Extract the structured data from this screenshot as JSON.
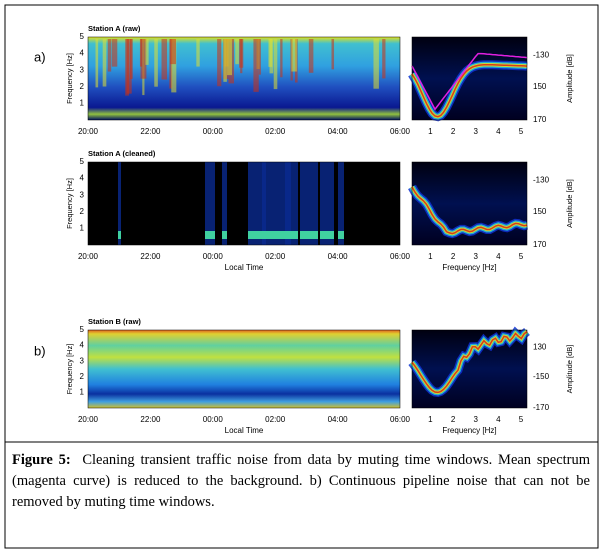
{
  "panel_labels": [
    "a)",
    "b)"
  ],
  "rows": [
    {
      "title": "Station A (raw)",
      "y_label": "Frequency [Hz]",
      "y_ticks": [
        "1",
        "2",
        "3",
        "4",
        "5"
      ],
      "x_ticks": [
        "20:00",
        "22:00",
        "00:00",
        "02:00",
        "04:00",
        "06:00"
      ],
      "amp_label": "Amplitude [dB]",
      "amp_ticks": [
        "-130",
        "150",
        "170"
      ],
      "freq_ticks": [
        "1",
        "2",
        "3",
        "4",
        "5"
      ]
    },
    {
      "title": "Station A (cleaned)",
      "y_label": "Frequency [Hz]",
      "y_ticks": [
        "1",
        "2",
        "3",
        "4",
        "5"
      ],
      "x_ticks": [
        "20:00",
        "22:00",
        "00:00",
        "02:00",
        "04:00",
        "06:00"
      ],
      "x_label": "Local Time",
      "amp_label": "Amplitude [dB]",
      "amp_ticks": [
        "-130",
        "150",
        "170"
      ],
      "freq_ticks": [
        "1",
        "2",
        "3",
        "4",
        "5"
      ],
      "freq_label": "Frequency [Hz]"
    },
    {
      "title": "Station B (raw)",
      "y_label": "Frequency [Hz]",
      "y_ticks": [
        "1",
        "2",
        "3",
        "4",
        "5"
      ],
      "x_ticks": [
        "20:00",
        "22:00",
        "00:00",
        "02:00",
        "04:00",
        "06:00"
      ],
      "x_label": "Local Time",
      "amp_label": "Amplitude [dB]",
      "amp_ticks": [
        "130",
        "-150",
        "-170"
      ],
      "freq_ticks": [
        "1",
        "2",
        "3",
        "4",
        "5"
      ],
      "freq_label": "Frequency [Hz]"
    }
  ],
  "caption": {
    "label": "Figure 5:",
    "text": "Cleaning transient traffic noise from data by muting time windows. Mean spectrum (magenta curve) is reduced to the background. b) Continuous pipeline noise that can not be removed by muting time windows."
  }
}
